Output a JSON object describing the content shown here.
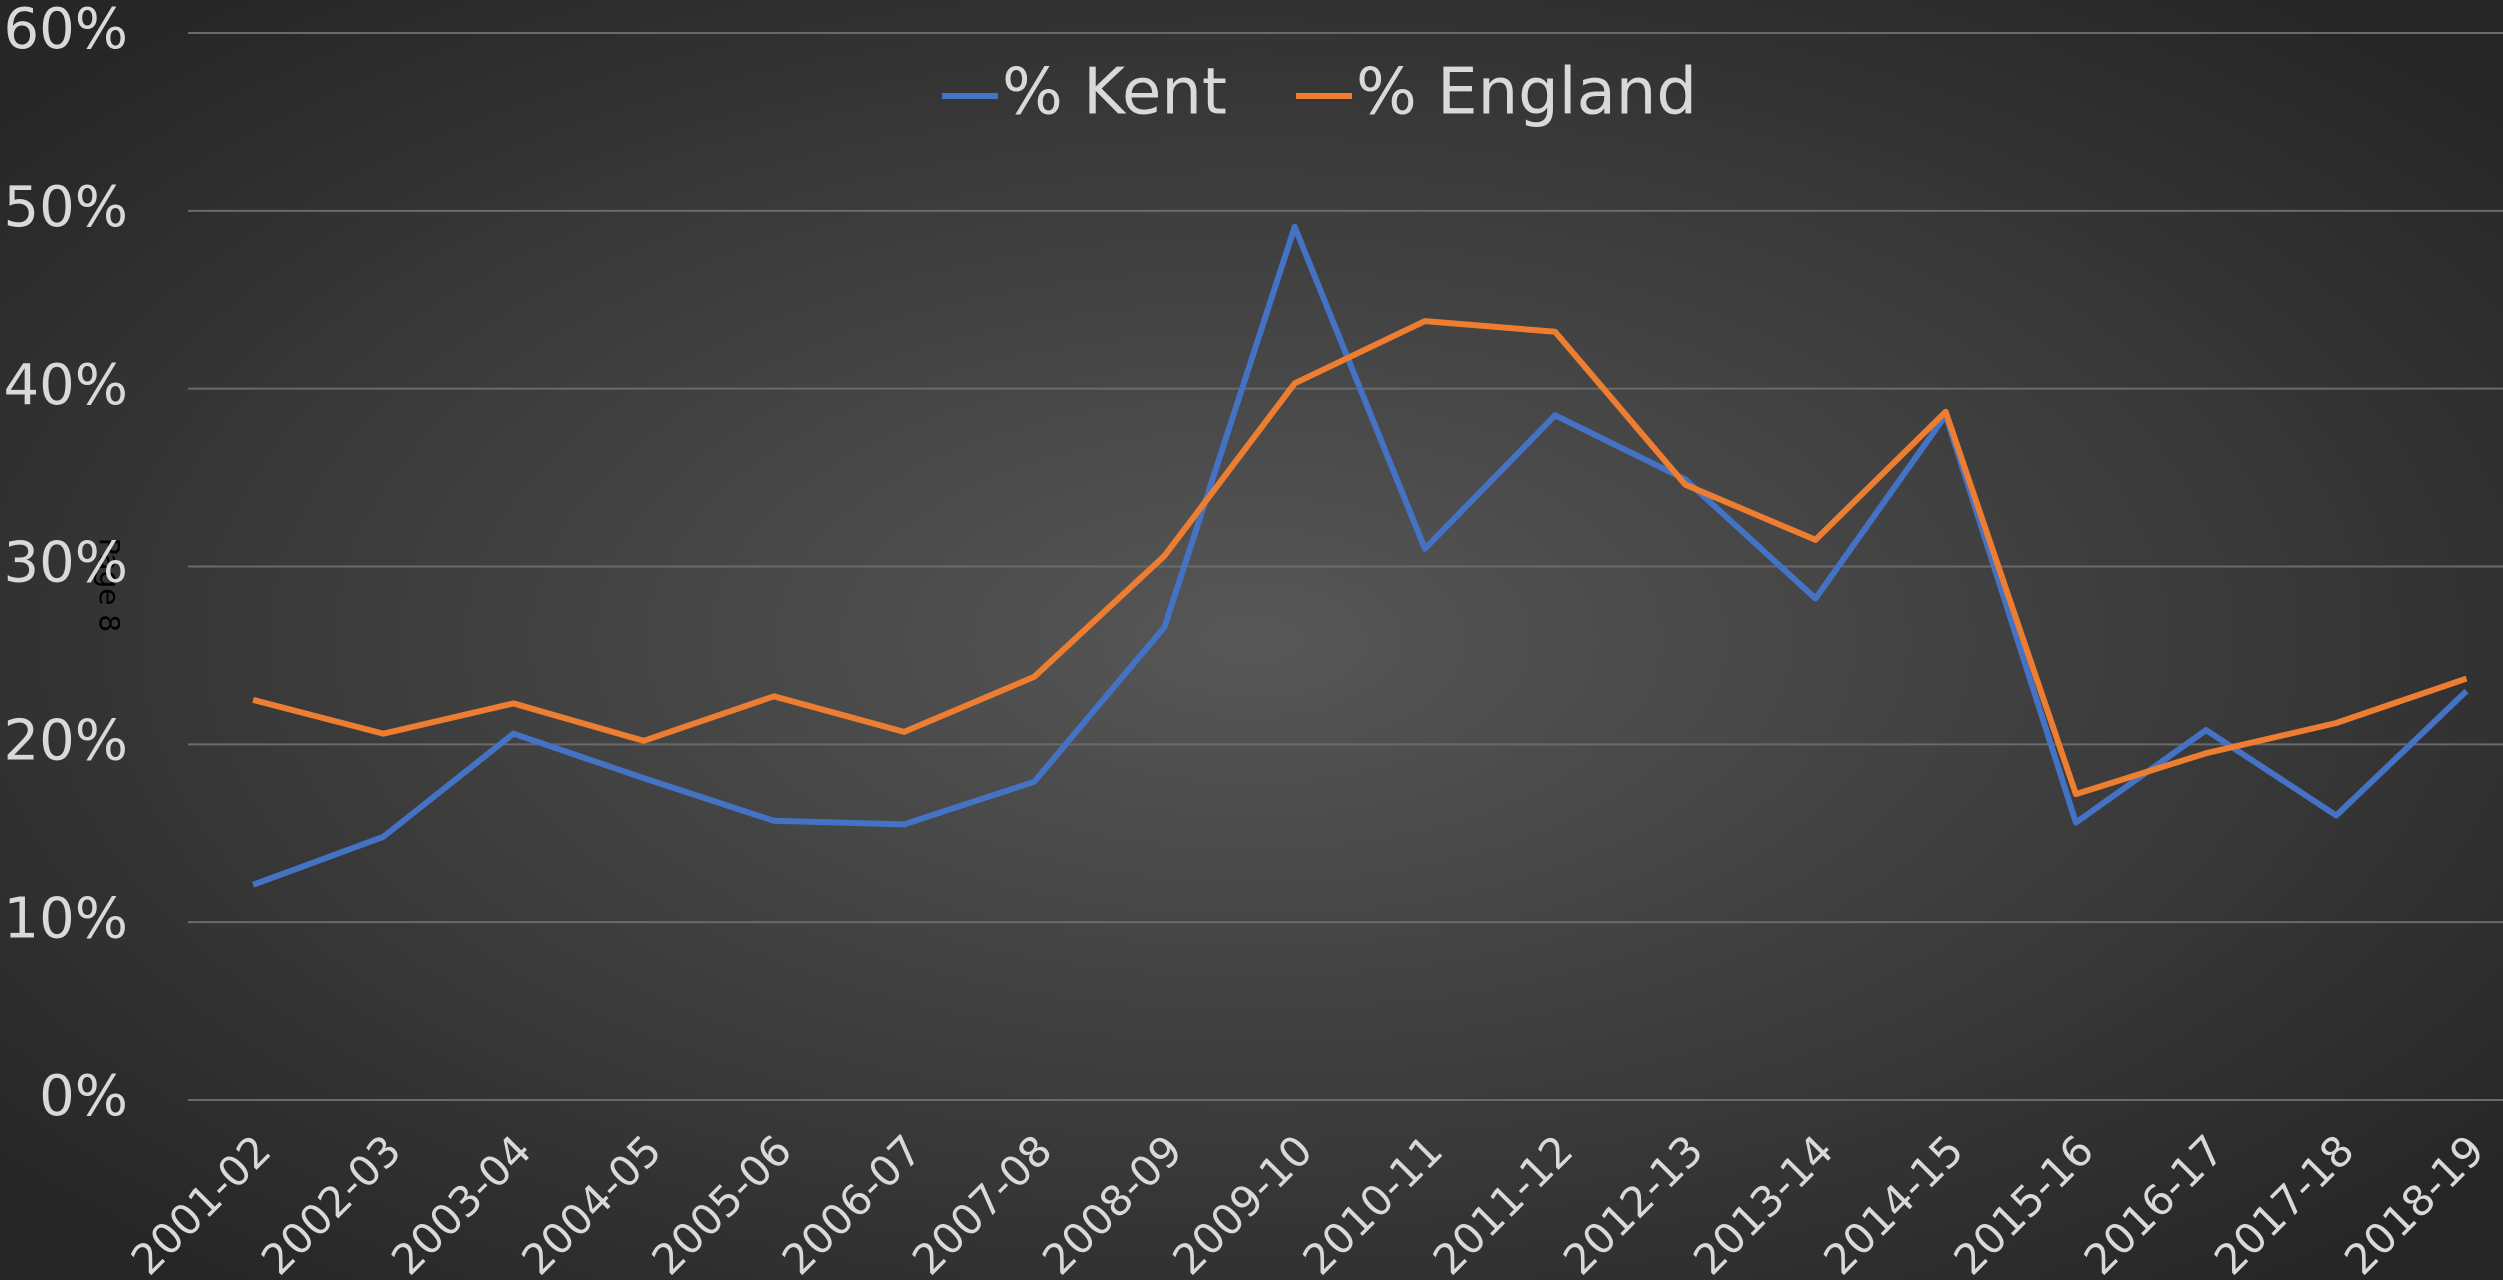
{
  "chart_data": {
    "type": "line",
    "annotation": "Page 8",
    "categories": [
      "2001-02",
      "2002-03",
      "2003-04",
      "2004-05",
      "2005-06",
      "2006-07",
      "2007-08",
      "2008-09",
      "2009-10",
      "2010-11",
      "2011-12",
      "2012-13",
      "2013-14",
      "2014-15",
      "2015-16",
      "2016-17",
      "2017-18",
      "2018-19"
    ],
    "series": [
      {
        "name": "% Kent",
        "color": "#4472c4",
        "values": [
          12.1,
          14.8,
          20.6,
          18.1,
          15.7,
          15.5,
          17.9,
          26.6,
          49.1,
          31.0,
          38.5,
          34.9,
          28.2,
          38.5,
          15.6,
          20.8,
          16.0,
          23.0
        ]
      },
      {
        "name": "% England",
        "color": "#ed7d31",
        "values": [
          22.5,
          20.6,
          22.3,
          20.2,
          22.7,
          20.7,
          23.8,
          30.6,
          40.3,
          43.8,
          43.2,
          34.6,
          31.5,
          38.7,
          17.2,
          19.5,
          21.2,
          23.7
        ]
      }
    ],
    "ylim": [
      0,
      60
    ],
    "yticks": [
      {
        "value": 0,
        "label": "0%"
      },
      {
        "value": 10,
        "label": "10%"
      },
      {
        "value": 20,
        "label": "20%"
      },
      {
        "value": 30,
        "label": "30%"
      },
      {
        "value": 40,
        "label": "40%"
      },
      {
        "value": 50,
        "label": "50%"
      },
      {
        "value": 60,
        "label": "60%"
      }
    ],
    "grid": true,
    "legend": "top"
  }
}
